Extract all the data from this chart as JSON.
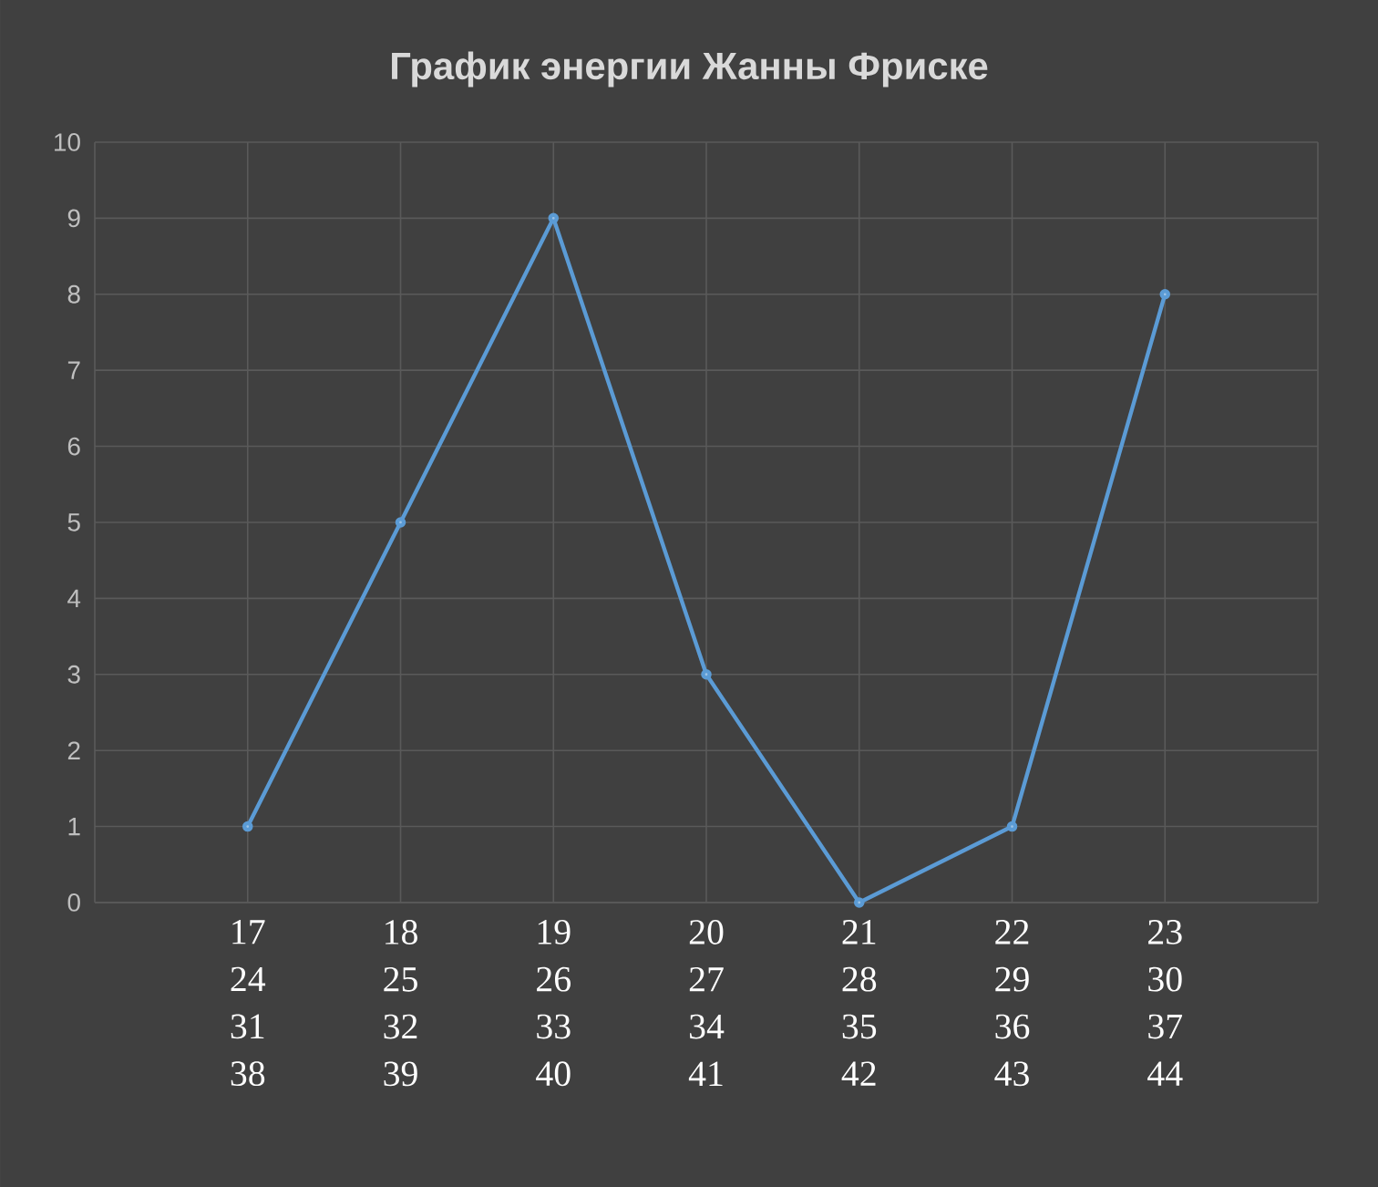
{
  "chart_data": {
    "type": "line",
    "title": "График энергии Жанны Фриске",
    "categories": [
      "17 24 31 38",
      "18 25 32 39",
      "19 26 33 40",
      "20 27 34 41",
      "21 28 35 42",
      "22 29 36 43",
      "23 30 37 44"
    ],
    "series": [
      {
        "color": "#5b9bd5",
        "values": [
          1,
          5,
          9,
          3,
          0,
          1,
          8
        ]
      }
    ],
    "ylim": [
      0,
      10
    ],
    "yticks": [
      0,
      1,
      2,
      3,
      4,
      5,
      6,
      7,
      8,
      9,
      10
    ],
    "grid": true,
    "marker": "circle",
    "line_style": "solid"
  }
}
